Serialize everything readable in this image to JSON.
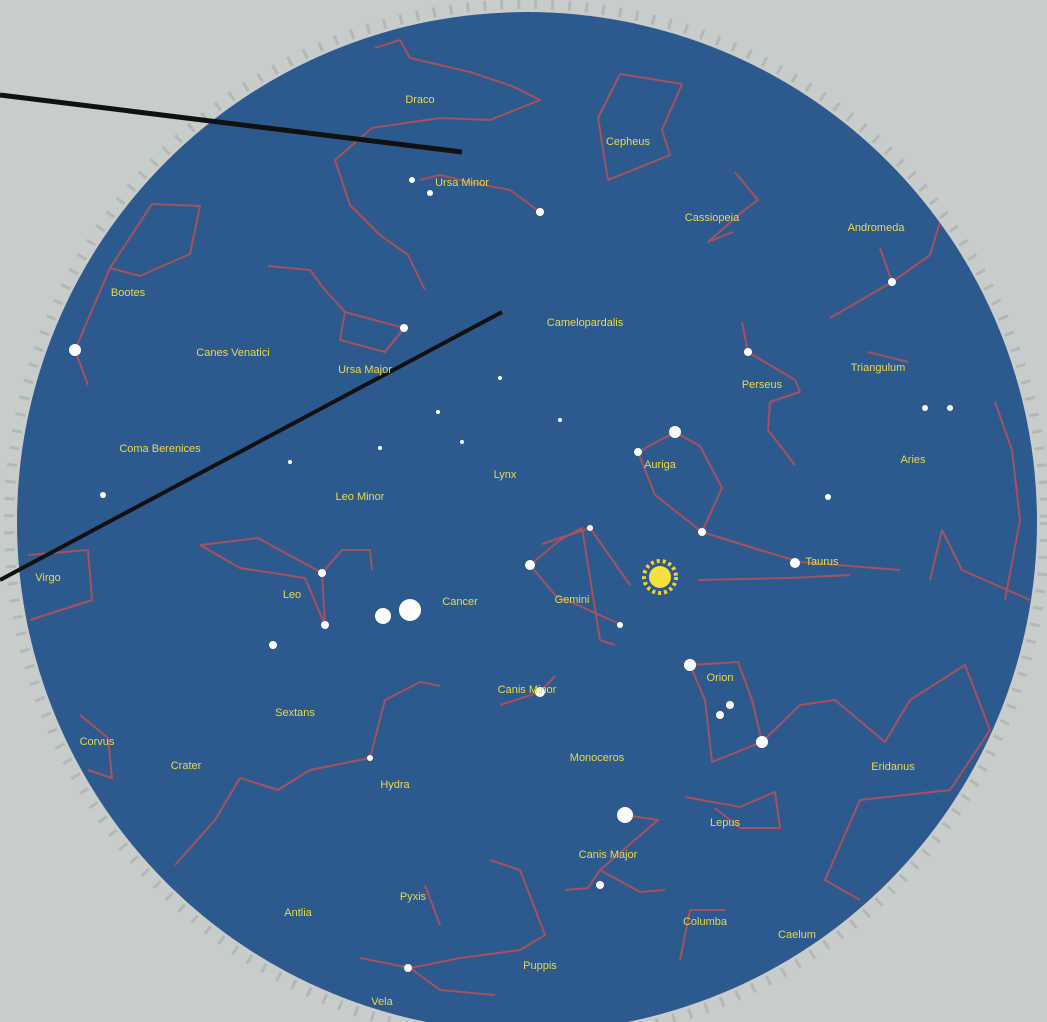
{
  "constellations": [
    "Draco",
    "Cepheus",
    "Ursa Minor",
    "Cassiopeia",
    "Andromeda",
    "Bootes",
    "Camelopardalis",
    "Canes Venatici",
    "Ursa Major",
    "Perseus",
    "Triangulum",
    "Coma Berenices",
    "Auriga",
    "Aries",
    "Lynx",
    "Leo Minor",
    "Virgo",
    "Leo",
    "Cancer",
    "Gemini",
    "Taurus",
    "Orion",
    "Canis Minor",
    "Sextans",
    "Crater",
    "Monoceros",
    "Hydra",
    "Eridanus",
    "Lepus",
    "Corvus",
    "Canis Major",
    "Pyxis",
    "Antlia",
    "Columba",
    "Caelum",
    "Puppis",
    "Vela"
  ]
}
